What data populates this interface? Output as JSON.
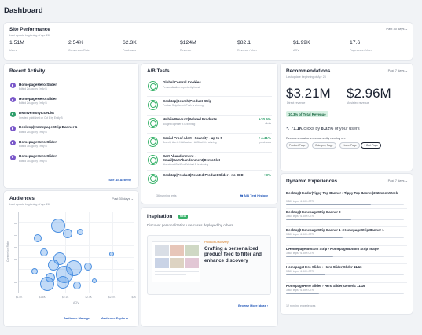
{
  "page_title": "Dashboard",
  "site_performance": {
    "title": "Site Performance",
    "subtitle": "Last update beginning of Apr 28",
    "range": "Past 30 days",
    "metrics": [
      {
        "value": "1.51M",
        "label": "Users"
      },
      {
        "value": "2.54%",
        "label": "Conversion Rate"
      },
      {
        "value": "62.3K",
        "label": "Purchases"
      },
      {
        "value": "$124M",
        "label": "Revenue"
      },
      {
        "value": "$82.1",
        "label": "Revenue / User"
      },
      {
        "value": "$1.99K",
        "label": "AOV"
      },
      {
        "value": "17.6",
        "label": "Pageviews / User"
      }
    ]
  },
  "recent_activity": {
    "title": "Recent Activity",
    "items": [
      {
        "name": "HomepageHero Slider",
        "meta": "Edited 2d ago by Emily B",
        "color": "#7a58c9"
      },
      {
        "name": "HomepageHero Slider",
        "meta": "Edited 2d ago by Emily B",
        "color": "#7a58c9"
      },
      {
        "name": "DMInventoryIcceList",
        "meta": "Created, published on Oct 8 by Emily B",
        "color": "#2e9e6b"
      },
      {
        "name": "Desktop|HomepageStrip Banner 1",
        "meta": "Edited 2d ago by Emily B",
        "color": "#7a58c9"
      },
      {
        "name": "HomepageHero Slider",
        "meta": "Edited 3d ago by Emily B",
        "color": "#7a58c9"
      },
      {
        "name": "HomepageHero Slider",
        "meta": "Edited 3d ago by Emily B",
        "color": "#7a58c9"
      }
    ],
    "see_all": "See All Activity"
  },
  "ab_tests": {
    "title": "A/B Tests",
    "tests": [
      {
        "name": "Global Control Cookies",
        "meta": "Personalization opportunity found",
        "lift": "",
        "lift_meta": ""
      },
      {
        "name": "Desktop|Search|Product Strip",
        "meta": "Product StripGenericPush is winning",
        "lift": "",
        "lift_meta": ""
      },
      {
        "name": "Mobile|Product|Related Products",
        "meta": "Bought Together B is winning",
        "lift": "+20.5%",
        "lift_meta": "clicks"
      },
      {
        "name": "Social Proof Alert - Scarcity - up to 5",
        "meta": "Scarcity Alert - Notification - ArtStrat B is winning",
        "lift": "+4.41%",
        "lift_meta": "purchases"
      },
      {
        "name": "Cart Abandonment - Email|CartAbandonment|DemoSlot",
        "meta": "AbandonedCartEmailVariant B is winning",
        "lift": "",
        "lift_meta": ""
      },
      {
        "name": "Desktop|Product|Related Product Slider - no ID D",
        "meta": "",
        "lift": "+3%",
        "lift_meta": ""
      }
    ],
    "footer_count": "36 running tests",
    "history_button": "A/B Test History"
  },
  "recommendations": {
    "title": "Recommendations",
    "subtitle": "Last update beginning of Apr 28",
    "range": "Past 7 days",
    "direct_value": "$3.21M",
    "direct_label": "Direct revenue",
    "assisted_value": "$2.96M",
    "assisted_label": "Assisted revenue",
    "badge": "10.3% of Total Revenue",
    "clicks_value": "71.1K",
    "clicks_mid": "clicks by",
    "clicks_pct": "8.02%",
    "clicks_tail": "of your users",
    "running_label": "Recommendations are currently running on:",
    "pages": [
      "Product Page",
      "Category Page",
      "Home Page"
    ],
    "cart_page": "+ Cart Page"
  },
  "audiences": {
    "title": "Audiences",
    "subtitle": "Last update beginning of Apr 28",
    "range": "Past 30 days",
    "x_ticks": [
      "$1.5K",
      "$1.8K",
      "$2.1K",
      "$2.4K",
      "$2.7K",
      "$3K"
    ],
    "xlabel": "AOV",
    "ylabel": "Conversion Rate",
    "link_manager": "Audience Manager",
    "link_explorer": "Audience Explorer"
  },
  "inspiration": {
    "title": "Inspiration",
    "badge": "NEW",
    "description": "Discover personalization use cases deployed by others",
    "card_tag": "Product Discovery",
    "card_headline": "Crafting a personalized product feed to filter and enhance discovery",
    "browse": "Browse More Ideas ›"
  },
  "dynamic": {
    "title": "Dynamic Experiences",
    "range": "Past 7 days",
    "items": [
      {
        "name": "Desktop|Header|Tippy Top Banner › Tippy Top Banner|2022connWeek",
        "meta": "3,800 imps · 6.34% CTR",
        "fill": 0.72
      },
      {
        "name": "Desktop|HomepageStrip Banner 2",
        "meta": "3,800 imps · 6.34% CTR",
        "fill": 0.55
      },
      {
        "name": "Desktop|HomepageStrip Banner 1 › HomepageStrip Banner 1",
        "meta": "3,800 imps · 6.34% CTR",
        "fill": 0.48
      },
      {
        "name": "DHomepage|Bottom Strip › HomepageBottom Strip Image",
        "meta": "3,800 imps · 6.34% CTR",
        "fill": 0.4
      },
      {
        "name": "HomepageHero Slider › Hero Slider|Slider 11/16",
        "meta": "3,800 imps · 6.34% CTR",
        "fill": 0.33
      },
      {
        "name": "HomepageHero Slider › Hero Slider|Generic 11/16",
        "meta": "3,800 imps · 6.34% CTR",
        "fill": 0.28
      }
    ],
    "footer": "12 running experiences"
  }
}
